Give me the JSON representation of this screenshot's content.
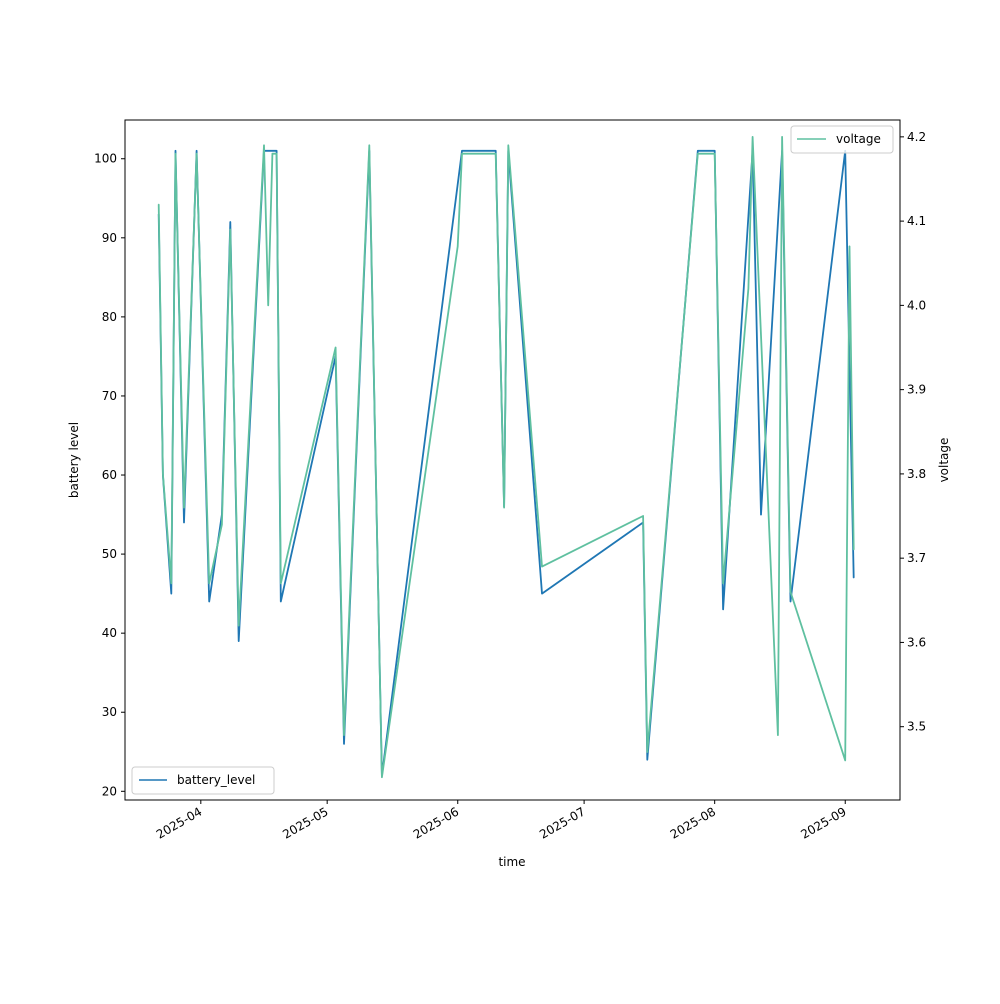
{
  "chart_data": {
    "type": "line",
    "title": "",
    "xlabel": "time",
    "ylabel": "battery level",
    "y2label": "voltage",
    "xlim": [
      "2025-03-14",
      "2025-09-14"
    ],
    "ylim": [
      18.9,
      104.9
    ],
    "y2lim": [
      3.413,
      4.22
    ],
    "grid": false,
    "x_ticks": [
      "2025-04-01",
      "2025-05-01",
      "2025-06-01",
      "2025-07-01",
      "2025-08-01",
      "2025-09-01"
    ],
    "x_tick_labels": [
      "2025-04",
      "2025-05",
      "2025-06",
      "2025-07",
      "2025-08",
      "2025-09"
    ],
    "y_ticks": [
      20,
      30,
      40,
      50,
      60,
      70,
      80,
      90,
      100
    ],
    "y2_ticks": [
      3.5,
      3.6,
      3.7,
      3.8,
      3.9,
      4.0,
      4.1,
      4.2
    ],
    "legends": [
      {
        "placement": "lower-left",
        "entries": [
          "battery_level"
        ]
      },
      {
        "placement": "upper-right",
        "entries": [
          "voltage"
        ]
      }
    ],
    "series": [
      {
        "name": "battery_level",
        "axis": "left",
        "color": "#1f77b4",
        "points": [
          [
            "2025-03-22",
            93
          ],
          [
            "2025-03-23",
            60
          ],
          [
            "2025-03-25",
            45
          ],
          [
            "2025-03-26",
            101
          ],
          [
            "2025-03-28",
            54
          ],
          [
            "2025-03-31",
            101
          ],
          [
            "2025-04-03",
            44
          ],
          [
            "2025-04-06",
            55
          ],
          [
            "2025-04-08",
            92
          ],
          [
            "2025-04-10",
            39
          ],
          [
            "2025-04-16",
            101
          ],
          [
            "2025-04-19",
            101
          ],
          [
            "2025-04-20",
            44
          ],
          [
            "2025-05-03",
            75
          ],
          [
            "2025-05-05",
            26
          ],
          [
            "2025-05-11",
            101
          ],
          [
            "2025-05-14",
            22
          ],
          [
            "2025-06-02",
            101
          ],
          [
            "2025-06-10",
            101
          ],
          [
            "2025-06-12",
            56
          ],
          [
            "2025-06-13",
            101
          ],
          [
            "2025-06-21",
            45
          ],
          [
            "2025-07-15",
            54
          ],
          [
            "2025-07-16",
            24
          ],
          [
            "2025-07-28",
            101
          ],
          [
            "2025-08-01",
            101
          ],
          [
            "2025-08-03",
            43
          ],
          [
            "2025-08-10",
            101
          ],
          [
            "2025-08-12",
            55
          ],
          [
            "2025-08-17",
            101
          ],
          [
            "2025-08-19",
            44
          ],
          [
            "2025-09-01",
            101
          ],
          [
            "2025-09-03",
            47
          ]
        ]
      },
      {
        "name": "voltage",
        "axis": "right",
        "color": "#5fc0a0",
        "points": [
          [
            "2025-03-22",
            4.12
          ],
          [
            "2025-03-23",
            3.8
          ],
          [
            "2025-03-25",
            3.67
          ],
          [
            "2025-03-26",
            4.18
          ],
          [
            "2025-03-28",
            3.76
          ],
          [
            "2025-03-31",
            4.18
          ],
          [
            "2025-04-03",
            3.67
          ],
          [
            "2025-04-06",
            3.74
          ],
          [
            "2025-04-08",
            4.09
          ],
          [
            "2025-04-10",
            3.62
          ],
          [
            "2025-04-16",
            4.19
          ],
          [
            "2025-04-17",
            4.0
          ],
          [
            "2025-04-18",
            4.18
          ],
          [
            "2025-04-19",
            4.18
          ],
          [
            "2025-04-20",
            3.67
          ],
          [
            "2025-05-03",
            3.95
          ],
          [
            "2025-05-05",
            3.49
          ],
          [
            "2025-05-11",
            4.19
          ],
          [
            "2025-05-14",
            3.44
          ],
          [
            "2025-06-01",
            4.07
          ],
          [
            "2025-06-02",
            4.18
          ],
          [
            "2025-06-07",
            4.18
          ],
          [
            "2025-06-10",
            4.18
          ],
          [
            "2025-06-12",
            3.76
          ],
          [
            "2025-06-13",
            4.19
          ],
          [
            "2025-06-21",
            3.69
          ],
          [
            "2025-07-15",
            3.75
          ],
          [
            "2025-07-16",
            3.47
          ],
          [
            "2025-07-28",
            4.18
          ],
          [
            "2025-08-01",
            4.18
          ],
          [
            "2025-08-03",
            3.67
          ],
          [
            "2025-08-09",
            4.02
          ],
          [
            "2025-08-10",
            4.2
          ],
          [
            "2025-08-16",
            3.49
          ],
          [
            "2025-08-17",
            4.2
          ],
          [
            "2025-08-19",
            3.66
          ],
          [
            "2025-09-01",
            3.46
          ],
          [
            "2025-09-02",
            4.07
          ],
          [
            "2025-09-03",
            3.71
          ]
        ]
      }
    ]
  }
}
